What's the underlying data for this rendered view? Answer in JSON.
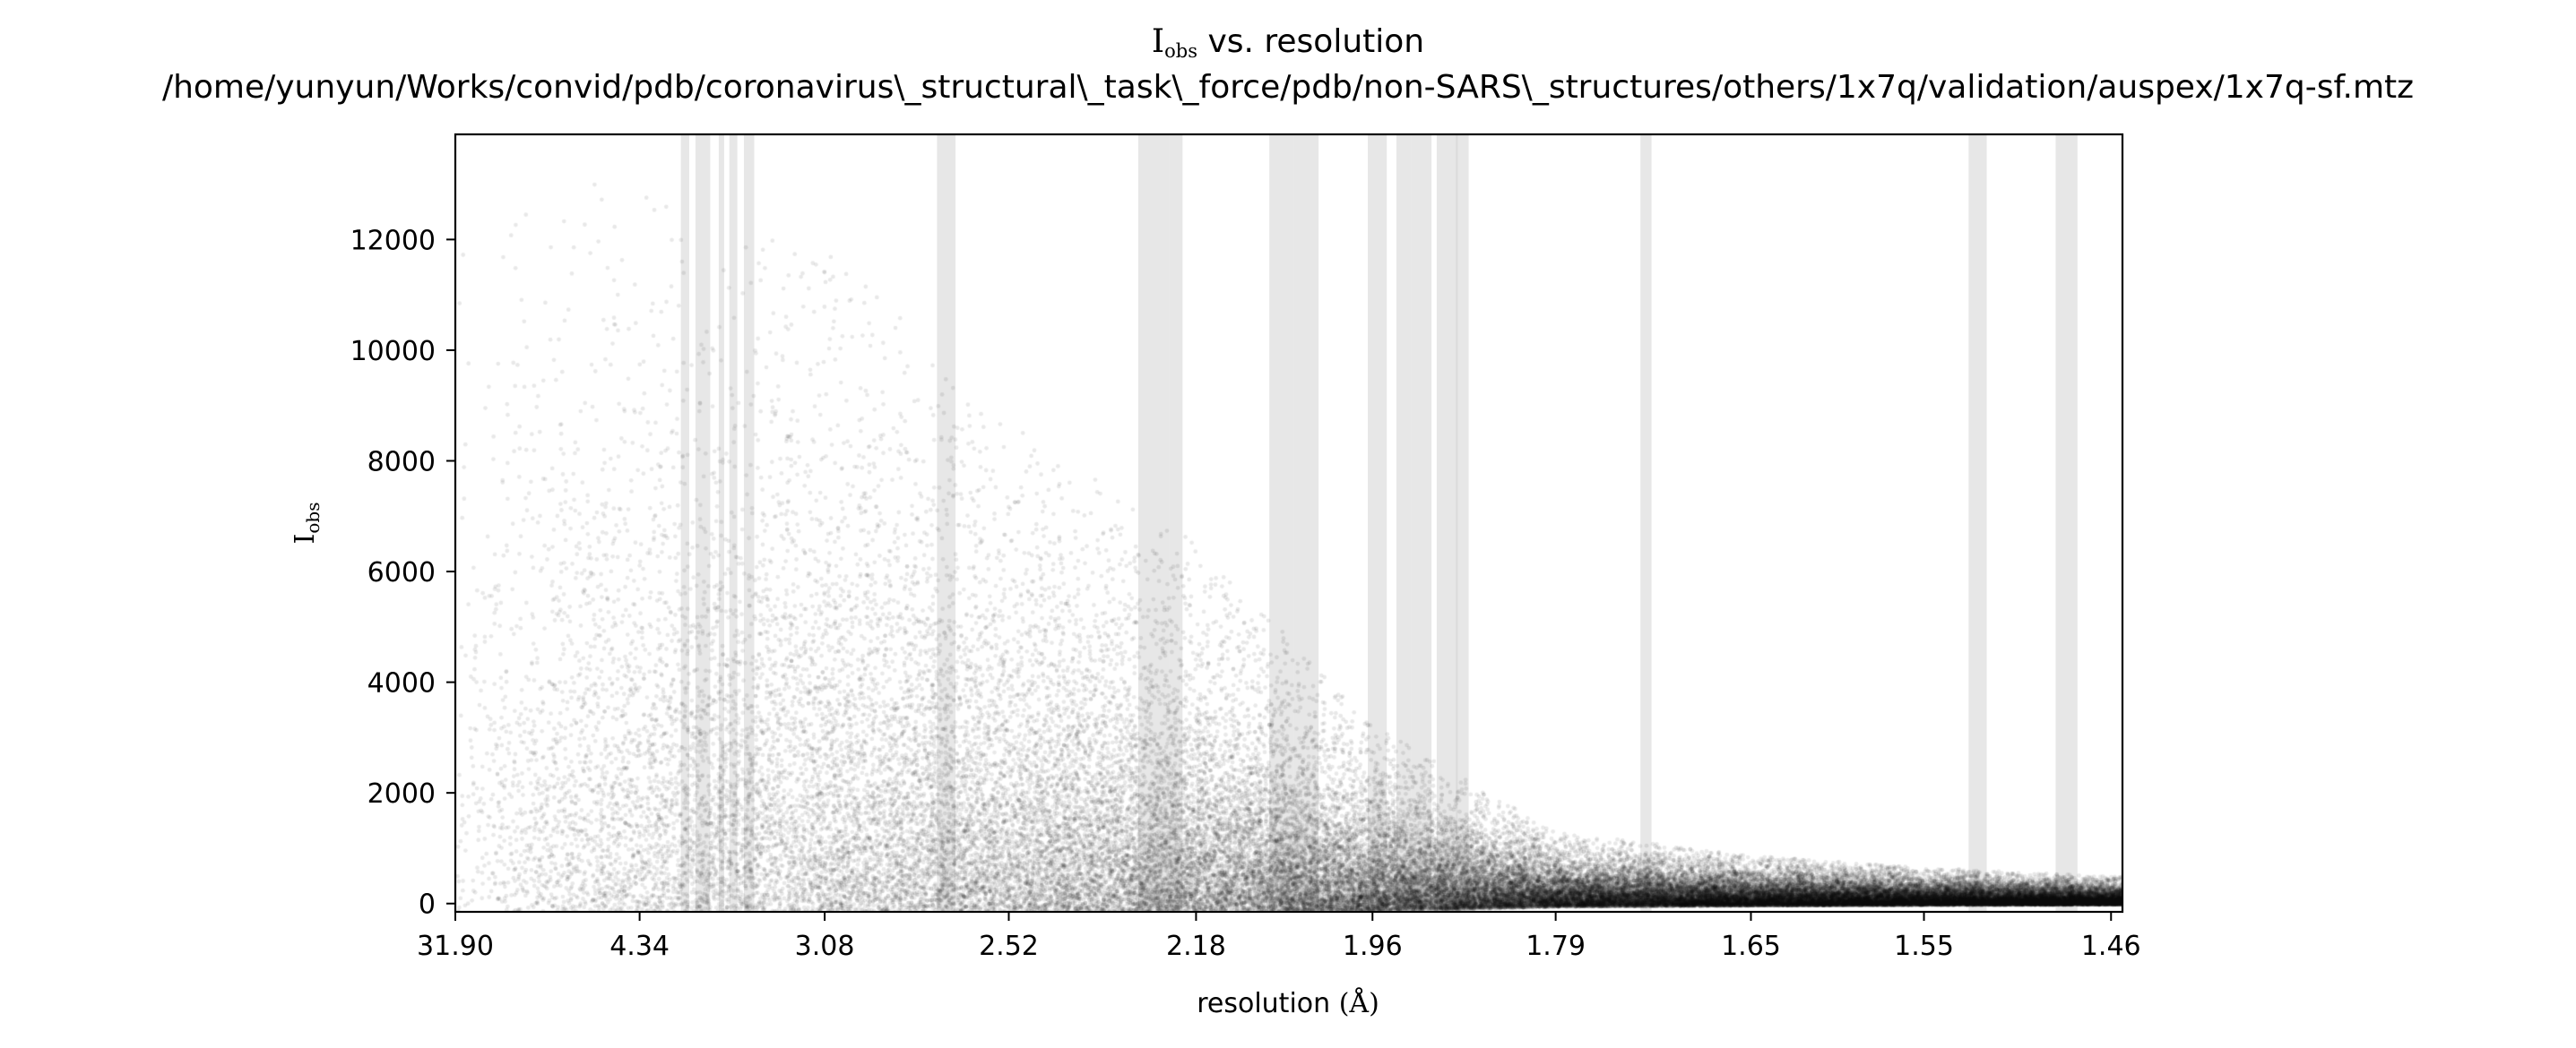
{
  "chart_data": {
    "type": "scatter",
    "title": {
      "symbol": "I",
      "subscript": "obs",
      "suffix": " vs. resolution",
      "path": "/home/yunyun/Works/convid/pdb/coronavirus\\_structural\\_task\\_force/pdb/non-SARS\\_structures/others/1x7q/validation/auspex/1x7q-sf.mtz"
    },
    "xlabel": {
      "text": "resolution",
      "unit": "(Å)"
    },
    "ylabel": {
      "symbol": "I",
      "subscript": "obs"
    },
    "x_scale": "inverse-square resolution (1/d²)",
    "x_ticks": [
      "31.90",
      "4.34",
      "3.08",
      "2.52",
      "2.18",
      "1.96",
      "1.79",
      "1.65",
      "1.55",
      "1.46"
    ],
    "xlim": [
      31.9,
      1.455
    ],
    "ylim": [
      -150,
      13900
    ],
    "y_ticks": [
      0,
      2000,
      4000,
      6000,
      8000,
      10000,
      12000
    ],
    "ice_ring_bands_resolution": [
      [
        3.93,
        3.86
      ],
      [
        3.81,
        3.7
      ],
      [
        3.64,
        3.61
      ],
      [
        3.57,
        3.52
      ],
      [
        3.48,
        3.42
      ],
      [
        2.7,
        2.65
      ],
      [
        2.27,
        2.22
      ],
      [
        2.22,
        2.2
      ],
      [
        2.08,
        2.05
      ],
      [
        2.05,
        2.02
      ],
      [
        1.965,
        1.945
      ],
      [
        1.935,
        1.92
      ],
      [
        1.92,
        1.9
      ],
      [
        1.895,
        1.875
      ],
      [
        1.877,
        1.865
      ],
      [
        1.725,
        1.717
      ],
      [
        1.527,
        1.518
      ],
      [
        1.485,
        1.475
      ]
    ],
    "points": {
      "description": "dense cloud of ~60000 reflections; intensity spread decays with resolution",
      "intensity_envelope": [
        {
          "resolution": 31.9,
          "typical_max": 13000
        },
        {
          "resolution": 3.08,
          "typical_max": 11000
        },
        {
          "resolution": 2.52,
          "typical_max": 8000
        },
        {
          "resolution": 2.18,
          "typical_max": 6000
        },
        {
          "resolution": 1.96,
          "typical_max": 3000
        },
        {
          "resolution": 1.79,
          "typical_max": 1200
        },
        {
          "resolution": 1.65,
          "typical_max": 800
        },
        {
          "resolution": 1.55,
          "typical_max": 600
        },
        {
          "resolution": 1.46,
          "typical_max": 450
        }
      ]
    },
    "marker_color": "#000000",
    "band_color": "#d3d3d3",
    "grid": false,
    "legend": false
  }
}
